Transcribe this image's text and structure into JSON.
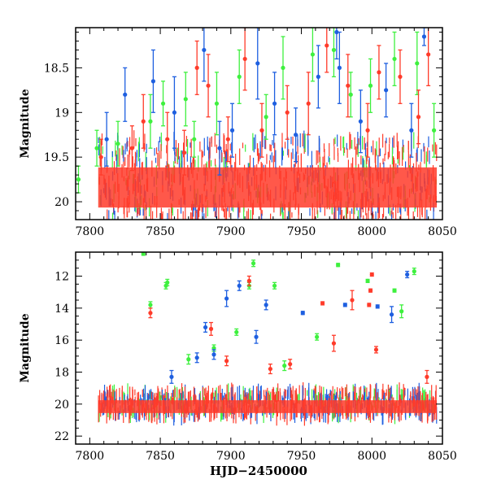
{
  "chart_data": [
    {
      "type": "scatter",
      "panel": "top",
      "xlabel": "",
      "ylabel": "Magnitude",
      "xlim": [
        7790,
        8050
      ],
      "ylim": [
        20.2,
        18.05
      ],
      "y_inverted": true,
      "x_ticks": [
        "7800",
        "7850",
        "7900",
        "7950",
        "8000",
        "8050"
      ],
      "y_ticks": [
        "18.5",
        "19",
        "19.5",
        "20"
      ],
      "grid": false,
      "legend": "none",
      "colors": {
        "green": "#3ef03e",
        "blue": "#1e5fe0",
        "red": "#ff3b2a"
      },
      "series": [
        {
          "color": "#3ef03e",
          "x": [
            7792,
            7805,
            7820,
            7843,
            7852,
            7868,
            7874,
            7890,
            7906,
            7925,
            7937,
            7958,
            7973,
            7985,
            7999,
            8016,
            8032,
            8044
          ],
          "y": [
            19.75,
            19.4,
            19.35,
            19.1,
            18.9,
            18.85,
            19.3,
            18.9,
            18.6,
            19.05,
            18.5,
            18.35,
            18.3,
            18.8,
            18.7,
            18.4,
            18.45,
            19.2
          ],
          "err": [
            0.15,
            0.2,
            0.25,
            0.3,
            0.25,
            0.3,
            0.2,
            0.35,
            0.3,
            0.25,
            0.35,
            0.3,
            0.3,
            0.25,
            0.3,
            0.3,
            0.35,
            0.3
          ]
        },
        {
          "color": "#1e5fe0",
          "x": [
            7812,
            7825,
            7845,
            7860,
            7881,
            7892,
            7901,
            7919,
            7931,
            7946,
            7962,
            7975,
            7977,
            7992,
            8010,
            8028,
            8037
          ],
          "y": [
            19.3,
            18.8,
            18.65,
            19.0,
            18.3,
            19.4,
            19.2,
            18.45,
            18.9,
            19.25,
            18.6,
            18.1,
            18.5,
            19.1,
            18.75,
            19.2,
            18.15
          ],
          "err": [
            0.3,
            0.3,
            0.35,
            0.4,
            0.35,
            0.3,
            0.3,
            0.4,
            0.35,
            0.3,
            0.35,
            0.3,
            0.4,
            0.35,
            0.3,
            0.3,
            0.1
          ]
        },
        {
          "color": "#ff3b2a",
          "x": [
            7808,
            7830,
            7838,
            7855,
            7867,
            7876,
            7884,
            7898,
            7910,
            7922,
            7940,
            7955,
            7968,
            7983,
            7997,
            8005,
            8020,
            8033,
            8040
          ],
          "y": [
            19.5,
            19.4,
            19.1,
            19.3,
            19.45,
            18.5,
            18.7,
            19.3,
            18.4,
            19.2,
            19.0,
            18.9,
            18.25,
            18.7,
            19.2,
            18.55,
            18.6,
            19.05,
            18.35
          ],
          "err": [
            0.2,
            0.25,
            0.3,
            0.3,
            0.25,
            0.3,
            0.35,
            0.25,
            0.35,
            0.3,
            0.3,
            0.35,
            0.3,
            0.35,
            0.3,
            0.3,
            0.3,
            0.3,
            0.35
          ]
        }
      ]
    },
    {
      "type": "scatter",
      "panel": "bottom",
      "xlabel": "HJD−2450000",
      "ylabel": "Magnitude",
      "xlim": [
        7790,
        8050
      ],
      "ylim": [
        22.5,
        10.5
      ],
      "y_inverted": true,
      "x_ticks": [
        "7800",
        "7850",
        "7900",
        "7950",
        "8000",
        "8050"
      ],
      "y_ticks": [
        "12",
        "14",
        "16",
        "18",
        "20",
        "22"
      ],
      "grid": false,
      "legend": "none",
      "colors": {
        "green": "#3ef03e",
        "blue": "#1e5fe0",
        "red": "#ff3b2a"
      },
      "series": [
        {
          "color": "#3ef03e",
          "x": [
            7838,
            7843,
            7854,
            7855,
            7870,
            7888,
            7904,
            7913,
            7916,
            7931,
            7938,
            7961,
            7976,
            7997,
            8016,
            8021,
            8030
          ],
          "y": [
            10.6,
            13.8,
            12.6,
            12.4,
            17.2,
            16.5,
            15.5,
            12.6,
            11.2,
            12.6,
            17.6,
            15.8,
            11.3,
            12.3,
            12.9,
            14.2,
            11.7
          ],
          "err": [
            0.1,
            0.2,
            0.2,
            0.2,
            0.3,
            0.2,
            0.2,
            0.2,
            0.2,
            0.2,
            0.3,
            0.2,
            0.1,
            0.1,
            0.1,
            0.4,
            0.2
          ]
        },
        {
          "color": "#1e5fe0",
          "x": [
            7858,
            7876,
            7882,
            7888,
            7897,
            7906,
            7918,
            7925,
            7951,
            7981,
            8004,
            8014,
            8025
          ],
          "y": [
            18.3,
            17.1,
            15.2,
            16.9,
            13.4,
            12.6,
            15.8,
            13.8,
            14.3,
            13.8,
            13.9,
            14.4,
            11.9
          ],
          "err": [
            0.4,
            0.3,
            0.3,
            0.3,
            0.5,
            0.3,
            0.4,
            0.3,
            0.1,
            0.1,
            0.1,
            0.5,
            0.2
          ]
        },
        {
          "color": "#ff3b2a",
          "x": [
            7843,
            7886,
            7897,
            7913,
            7928,
            7942,
            7965,
            7973,
            7986,
            7998,
            7999,
            8000,
            8003,
            8039
          ],
          "y": [
            14.3,
            15.3,
            17.3,
            12.3,
            17.8,
            17.5,
            13.7,
            16.2,
            13.5,
            13.8,
            12.9,
            11.9,
            16.6,
            18.3
          ],
          "err": [
            0.3,
            0.4,
            0.3,
            0.3,
            0.3,
            0.3,
            0.1,
            0.5,
            0.6,
            0.1,
            0.1,
            0.1,
            0.2,
            0.4
          ]
        }
      ]
    }
  ]
}
